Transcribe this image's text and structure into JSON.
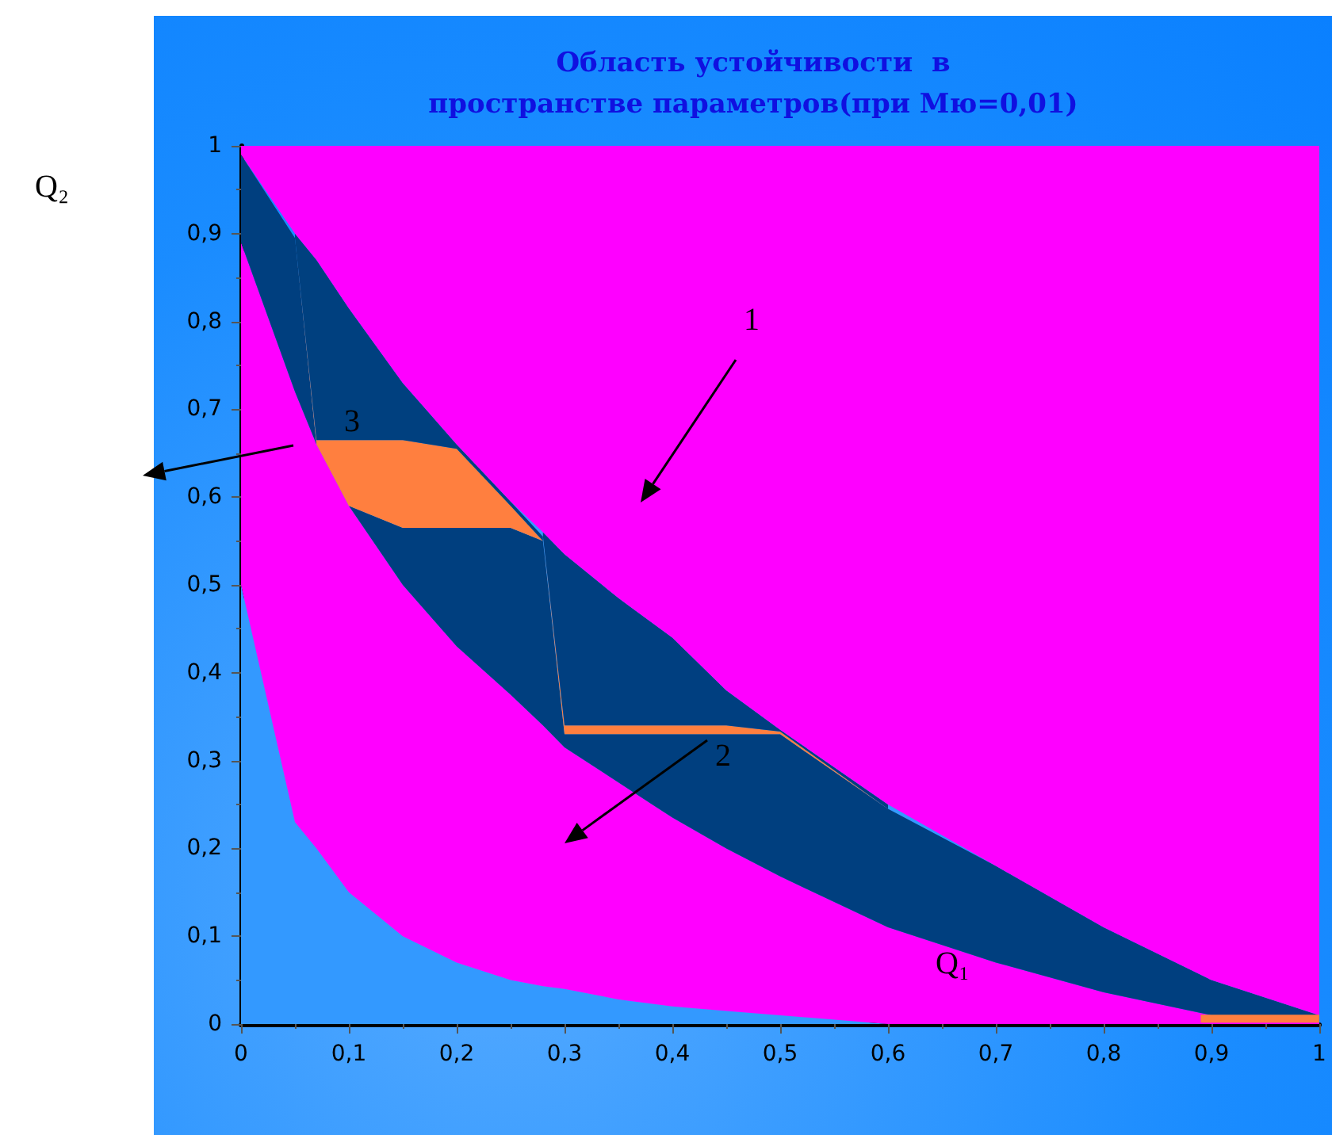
{
  "chart_data": {
    "type": "area",
    "stacked": true,
    "title": "Область устойчивости  в\nпространстве параметров(при Мю=0,01)",
    "xlabel": "Q₁",
    "ylabel": "Q₂",
    "x": [
      0,
      0.05,
      0.07,
      0.1,
      0.15,
      0.2,
      0.25,
      0.28,
      0.3,
      0.35,
      0.4,
      0.45,
      0.5,
      0.6,
      0.7,
      0.8,
      0.9,
      1.0
    ],
    "series": [
      {
        "color": "#3399ff",
        "values": [
          0.5,
          0.23,
          0.2,
          0.15,
          0.1,
          0.07,
          0.05,
          0.043,
          0.04,
          0.028,
          0.02,
          0.015,
          0.01,
          0,
          0,
          0,
          0,
          0
        ]
      },
      {
        "color": "#ff00ff",
        "values": [
          0.39,
          0.49,
          0.46,
          0.44,
          0.4,
          0.36,
          0.325,
          0.297,
          0.275,
          0.247,
          0.215,
          0.185,
          0.158,
          0.11,
          0.07,
          0.036,
          0.01,
          0.01
        ]
      },
      {
        "color": "#003f7f",
        "values": [
          0.1,
          0.175,
          0,
          0,
          0.065,
          0.135,
          0.19,
          0.21,
          0.015,
          0.055,
          0.095,
          0.13,
          0.162,
          0.135,
          0.11,
          0.074,
          0.04,
          0
        ]
      },
      {
        "color": "#ff7f3f",
        "values": [
          null,
          0,
          0.005,
          0.075,
          0.1,
          0.09,
          0.025,
          0,
          null,
          null,
          null,
          null,
          null,
          null,
          null,
          null,
          null,
          null
        ]
      },
      {
        "color": "#00407f",
        "values": [
          null,
          0.005,
          0.205,
          0.15,
          0.065,
          0.005,
          0.005,
          0.005,
          null,
          null,
          null,
          null,
          null,
          null,
          null,
          null,
          null,
          null
        ]
      },
      {
        "color": "#ff7f3f",
        "values": [
          null,
          null,
          null,
          null,
          null,
          null,
          null,
          0,
          0.01,
          0.01,
          0.01,
          0.01,
          0.003,
          0,
          null,
          null,
          null,
          null
        ]
      },
      {
        "color": "#003f80",
        "values": [
          null,
          null,
          null,
          null,
          null,
          null,
          null,
          0.005,
          0.195,
          0.145,
          0.1,
          0.04,
          0.002,
          0.005,
          null,
          null,
          null,
          null
        ]
      },
      {
        "color": "#fe00ff",
        "values": [
          0.01,
          0.1,
          0.13,
          0.185,
          0.27,
          0.34,
          0.405,
          0.44,
          0.465,
          0.515,
          0.56,
          0.62,
          0.665,
          0.75,
          0.82,
          0.89,
          0.95,
          0.99
        ]
      },
      {
        "type": "line",
        "color": "#ff7f3f",
        "x": [
          0.89,
          1.0
        ],
        "values": [
          0.006,
          0.006
        ]
      }
    ],
    "xlim": [
      0,
      1
    ],
    "ylim": [
      0,
      1
    ],
    "xticks": [
      0,
      {
        "value": 0.1,
        "label": "0,1"
      },
      {
        "value": 0.2,
        "label": "0,2"
      },
      {
        "value": 0.3,
        "label": "0,3"
      },
      {
        "value": 0.4,
        "label": "0,4"
      },
      {
        "value": 0.5,
        "label": "0,5"
      },
      {
        "value": 0.6,
        "label": "0,6"
      },
      {
        "value": 0.7,
        "label": "0,7"
      },
      {
        "value": 0.8,
        "label": "0,8"
      },
      {
        "value": 0.9,
        "label": "0,9"
      },
      1
    ],
    "yticks": [
      0,
      {
        "value": 0.1,
        "label": "0,1"
      },
      {
        "value": 0.2,
        "label": "0,2"
      },
      {
        "value": 0.3,
        "label": "0,3"
      },
      {
        "value": 0.4,
        "label": "0,4"
      },
      {
        "value": 0.5,
        "label": "0,5"
      },
      {
        "value": 0.6,
        "label": "0,6"
      },
      {
        "value": 0.7,
        "label": "0,7"
      },
      {
        "value": 0.8,
        "label": "0,8"
      },
      {
        "value": 0.9,
        "label": "0,9"
      },
      1
    ],
    "annotations": [
      "1",
      "2",
      "3"
    ],
    "grid": false
  }
}
